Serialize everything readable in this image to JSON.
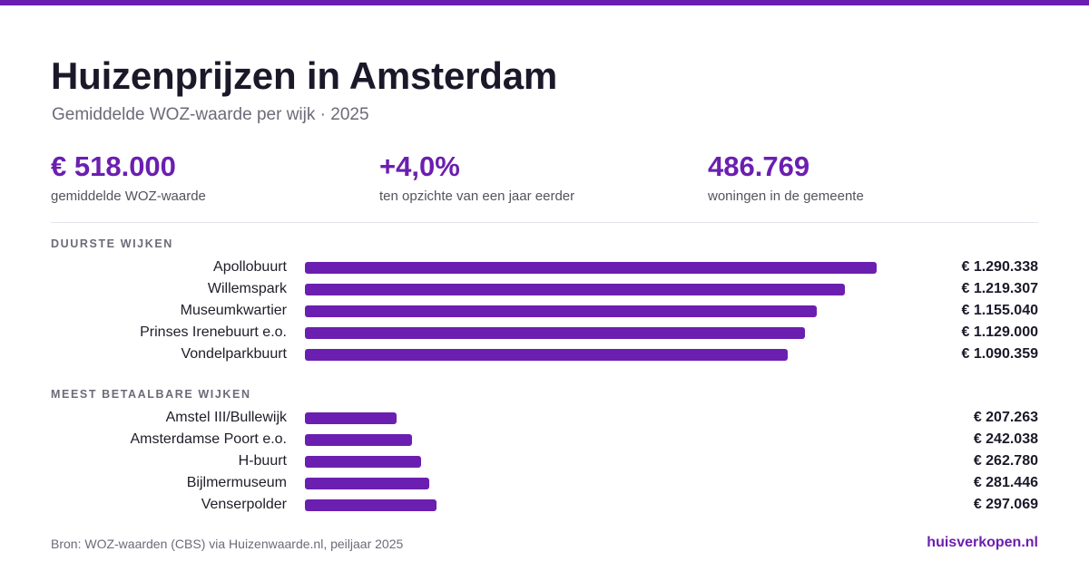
{
  "header": {
    "title": "Huizenprijzen in Amsterdam",
    "subtitle": "Gemiddelde WOZ-waarde per wijk · 2025"
  },
  "stats": [
    {
      "value": "€ 518.000",
      "label": "gemiddelde WOZ-waarde"
    },
    {
      "value": "+4,0%",
      "label": "ten opzichte van een jaar eerder"
    },
    {
      "value": "486.769",
      "label": "woningen in de gemeente"
    }
  ],
  "chart_data": {
    "type": "bar",
    "orientation": "horizontal",
    "max_value": 1290338,
    "bar_color": "#6b1fb0",
    "groups": [
      {
        "label": "DUURSTE WIJKEN",
        "categories": [
          "Apollobuurt",
          "Willemspark",
          "Museumkwartier",
          "Prinses Irenebuurt e.o.",
          "Vondelparkbuurt"
        ],
        "values": [
          1290338,
          1219307,
          1155040,
          1129000,
          1090359
        ],
        "value_labels": [
          "€ 1.290.338",
          "€ 1.219.307",
          "€ 1.155.040",
          "€ 1.129.000",
          "€ 1.090.359"
        ]
      },
      {
        "label": "MEEST BETAALBARE WIJKEN",
        "categories": [
          "Amstel III/Bullewijk",
          "Amsterdamse Poort e.o.",
          "H-buurt",
          "Bijlmermuseum",
          "Venserpolder"
        ],
        "values": [
          207263,
          242038,
          262780,
          281446,
          297069
        ],
        "value_labels": [
          "€ 207.263",
          "€ 242.038",
          "€ 262.780",
          "€ 281.446",
          "€ 297.069"
        ]
      }
    ]
  },
  "footer": {
    "source": "Bron: WOZ-waarden (CBS) via Huizenwaarde.nl, peiljaar 2025",
    "brand": "huisverkopen.nl"
  },
  "colors": {
    "accent": "#6b1fb0",
    "text": "#1b1929",
    "muted": "#6e6a78"
  }
}
